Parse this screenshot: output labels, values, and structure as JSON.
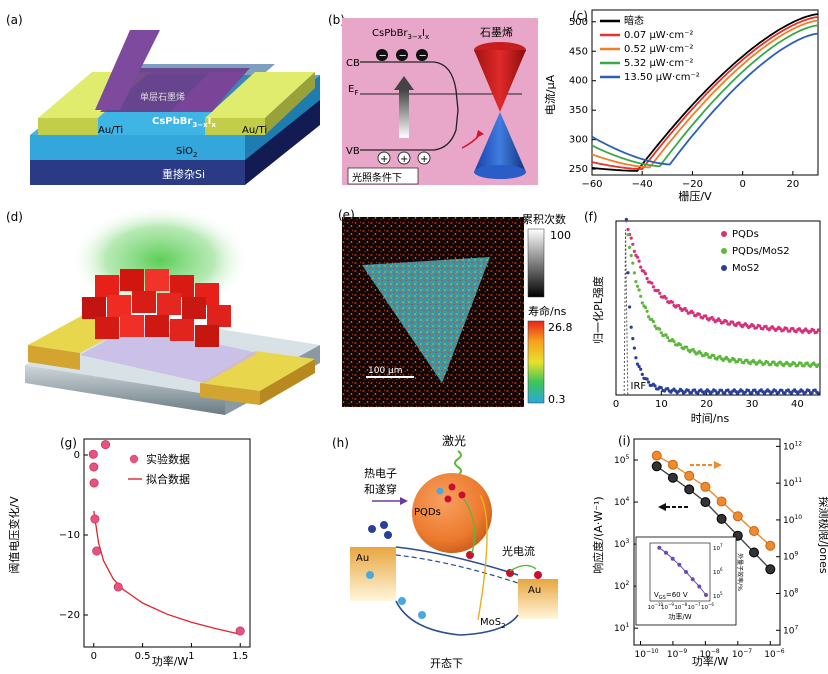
{
  "panel_a": {
    "label": "(a)",
    "electrode_left": "Au/Ti",
    "electrode_right": "Au/Ti",
    "material": "CsPbBr",
    "material_sub": "3−x",
    "material_tail": "I",
    "material_tail_sub": "x",
    "layer_graphene": "单层石墨烯",
    "layer_oxide": "SiO",
    "layer_oxide_sub": "2",
    "substrate": "重掺杂Si"
  },
  "panel_b": {
    "label": "(b)",
    "material": "CsPbBr",
    "material_sub": "3−x",
    "material_tail": "I",
    "material_tail_sub": "x",
    "graphene": "石墨烯",
    "cb": "CB",
    "vb": "VB",
    "ef": "E",
    "ef_sub": "F",
    "condition": "光照条件下"
  },
  "panel_c": {
    "label": "(c)",
    "chart_data": {
      "type": "line",
      "xlabel": "栅压/V",
      "ylabel": "电流/μA",
      "xlim": [
        -60,
        30
      ],
      "ylim": [
        240,
        520
      ],
      "xticks": [
        -60,
        -40,
        -20,
        0,
        20
      ],
      "yticks": [
        250,
        300,
        350,
        400,
        450,
        500
      ],
      "legend_position": "top-left",
      "series": [
        {
          "name": "暗态",
          "color": "#000000",
          "vmin": -42,
          "ymin": 247,
          "y_at_30": 513,
          "y_at_-60": 252
        },
        {
          "name": "0.07 μW·cm⁻²",
          "color": "#e8302c",
          "vmin": -40,
          "ymin": 250,
          "y_at_30": 508,
          "y_at_-60": 262
        },
        {
          "name": "0.52 μW·cm⁻²",
          "color": "#f07e22",
          "vmin": -37,
          "ymin": 253,
          "y_at_30": 502,
          "y_at_-60": 275
        },
        {
          "name": "5.32 μW·cm⁻²",
          "color": "#3aa846",
          "vmin": -33,
          "ymin": 255,
          "y_at_30": 494,
          "y_at_-60": 290
        },
        {
          "name": "13.50 μW·cm⁻²",
          "color": "#2b5fb4",
          "vmin": -29,
          "ymin": 258,
          "y_at_30": 480,
          "y_at_-60": 305
        }
      ]
    }
  },
  "panel_d": {
    "label": "(d)"
  },
  "panel_e": {
    "label": "(e)",
    "count_label": "累积次数",
    "count_max": "100",
    "lifetime_label": "寿命/ns",
    "lifetime_max": "26.8",
    "lifetime_min": "0.3",
    "scalebar": "100 μm"
  },
  "panel_f": {
    "label": "(f)",
    "chart_data": {
      "type": "scatter",
      "xlabel": "时间/ns",
      "ylabel": "归一化PL强度",
      "xlim": [
        0,
        45
      ],
      "xticks": [
        0,
        10,
        20,
        30,
        40
      ],
      "legend_position": "top-right",
      "annotation": "IRF",
      "series": [
        {
          "name": "PQDs",
          "color": "#d6317a",
          "end_level": 0.35
        },
        {
          "name": "PQDs/MoS2",
          "color": "#5cb83a",
          "end_level": 0.17
        },
        {
          "name": "MoS2",
          "color": "#2a3f9c",
          "end_level": 0.02
        }
      ]
    }
  },
  "panel_g": {
    "label": "(g)",
    "chart_data": {
      "type": "scatter",
      "xlabel": "功率/W",
      "ylabel": "阈值电压变化/V",
      "xlim": [
        -0.1,
        1.6
      ],
      "ylim": [
        -24,
        2
      ],
      "xticks": [
        0,
        0.5,
        1.0,
        1.5
      ],
      "yticks": [
        0,
        -10,
        -20
      ],
      "legend_position": "top-right",
      "series": [
        {
          "name": "实验数据",
          "x": [
            -0.005,
            0.0,
            0.003,
            0.012,
            0.03,
            0.12,
            0.25,
            1.5
          ],
          "y": [
            0.1,
            -1.5,
            -3.5,
            -8,
            -12,
            1.3,
            -16.5,
            -22
          ]
        },
        {
          "name": "拟合数据",
          "x": [
            0.0,
            0.05,
            0.1,
            0.2,
            0.3,
            0.5,
            0.75,
            1.0,
            1.25,
            1.5
          ],
          "y": [
            -7,
            -11,
            -13.2,
            -15.5,
            -16.8,
            -18.5,
            -19.9,
            -20.9,
            -21.7,
            -22.4
          ]
        }
      ]
    }
  },
  "panel_h": {
    "label": "(h)",
    "laser": "激光",
    "hot_electron_1": "热电子",
    "hot_electron_2": "和遂穿",
    "pqds": "PQDs",
    "photocurrent": "光电流",
    "au_left": "Au",
    "au_right": "Au",
    "mos2": "MoS",
    "mos2_sub": "2",
    "caption": "开态下"
  },
  "panel_i": {
    "label": "(i)",
    "chart_data": {
      "type": "line",
      "xlabel": "功率/W",
      "ylabel": "响应度/(A·W⁻¹)",
      "y2label": "探测极限/Jones",
      "x_log_exponents": [
        -10,
        -9,
        -8,
        -7,
        -6
      ],
      "y_left_log_exponents": [
        1,
        2,
        3,
        4,
        5
      ],
      "y_right_log_exponents": [
        7,
        8,
        9,
        10,
        11,
        12
      ],
      "series": [
        {
          "name": "响应度",
          "color": "#444444",
          "log_x": [
            -9.5,
            -9.0,
            -8.5,
            -8.0,
            -7.5,
            -7.0,
            -6.5,
            -6.0
          ],
          "log_y": [
            4.85,
            4.58,
            4.3,
            4.0,
            3.6,
            3.2,
            2.8,
            2.4
          ]
        },
        {
          "name": "探测极限",
          "color": "#f08a2a",
          "log_x": [
            -9.5,
            -9.0,
            -8.5,
            -8.0,
            -7.5,
            -7.0,
            -6.5,
            -6.0
          ],
          "log_y2": [
            11.75,
            11.5,
            11.2,
            10.9,
            10.5,
            10.1,
            9.7,
            9.3
          ]
        }
      ],
      "inset": {
        "xlabel": "功率/W",
        "ylabel": "外量子效率/%",
        "annotation": "V",
        "annotation_sub": "GS",
        "annotation_tail": "=60 V",
        "x_log_exponents": [
          -10,
          -9,
          -8,
          -7,
          -6
        ],
        "y_log_exponents": [
          5,
          6,
          7
        ],
        "log_x": [
          -9.5,
          -9.0,
          -8.5,
          -8.0,
          -7.5,
          -7.0,
          -6.5,
          -6.0
        ],
        "log_y": [
          7.0,
          6.8,
          6.55,
          6.3,
          6.0,
          5.7,
          5.4,
          5.05
        ]
      }
    }
  }
}
